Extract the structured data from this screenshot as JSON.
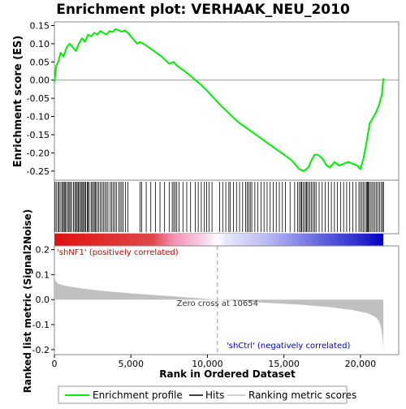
{
  "chart_data": {
    "type": "line",
    "title": "Enrichment plot: VERHAAK_NEU_2010",
    "es_panel": {
      "ylabel": "Enrichment score (ES)",
      "ylim": [
        -0.275,
        0.16
      ],
      "yticks": [
        -0.25,
        -0.2,
        -0.15,
        -0.1,
        -0.05,
        0.0,
        0.05,
        0.1,
        0.15
      ],
      "ytick_labels": [
        "-0.25",
        "-0.20",
        "-0.15",
        "-0.10",
        "-0.05",
        "0.00",
        "0.05",
        "0.10",
        "0.15"
      ],
      "series_name": "Enrichment profile",
      "line_color": "#00ee00",
      "x": [
        0,
        120,
        250,
        400,
        600,
        800,
        1000,
        1200,
        1400,
        1600,
        1800,
        2000,
        2200,
        2400,
        2600,
        2800,
        3000,
        3200,
        3400,
        3600,
        3800,
        4000,
        4200,
        4400,
        4600,
        4800,
        5000,
        5200,
        5400,
        5600,
        5800,
        6000,
        6500,
        7000,
        7500,
        7800,
        8000,
        8500,
        9000,
        9500,
        10000,
        10654,
        11000,
        11500,
        12000,
        12500,
        13000,
        13500,
        14000,
        14500,
        15000,
        15500,
        16000,
        16300,
        16600,
        16800,
        17000,
        17200,
        17500,
        17800,
        18000,
        18300,
        18600,
        18900,
        19200,
        19500,
        19800,
        20000,
        20200,
        20400,
        20600,
        20800,
        21000,
        21200,
        21400,
        21500
      ],
      "y": [
        -0.005,
        0.04,
        0.05,
        0.075,
        0.065,
        0.09,
        0.1,
        0.09,
        0.08,
        0.1,
        0.115,
        0.105,
        0.125,
        0.12,
        0.13,
        0.125,
        0.135,
        0.13,
        0.125,
        0.135,
        0.132,
        0.14,
        0.137,
        0.133,
        0.137,
        0.13,
        0.12,
        0.11,
        0.1,
        0.105,
        0.1,
        0.095,
        0.08,
        0.065,
        0.045,
        0.05,
        0.04,
        0.025,
        0.008,
        -0.01,
        -0.03,
        -0.06,
        -0.075,
        -0.095,
        -0.115,
        -0.13,
        -0.145,
        -0.16,
        -0.175,
        -0.19,
        -0.205,
        -0.22,
        -0.245,
        -0.25,
        -0.24,
        -0.22,
        -0.205,
        -0.205,
        -0.215,
        -0.235,
        -0.24,
        -0.225,
        -0.235,
        -0.23,
        -0.225,
        -0.23,
        -0.235,
        -0.245,
        -0.215,
        -0.17,
        -0.12,
        -0.105,
        -0.09,
        -0.07,
        -0.04,
        0.005
      ]
    },
    "hits": [
      50,
      150,
      260,
      310,
      420,
      520,
      580,
      650,
      720,
      800,
      900,
      960,
      1050,
      1120,
      1250,
      1330,
      1400,
      1480,
      1550,
      1600,
      1700,
      1760,
      1850,
      1900,
      1980,
      2050,
      2150,
      2200,
      2280,
      2400,
      2480,
      2560,
      2650,
      2700,
      2800,
      2900,
      3000,
      3100,
      3200,
      3300,
      3400,
      3500,
      3650,
      3750,
      3850,
      3950,
      4050,
      4200,
      4300,
      4400,
      4500,
      4650,
      4800,
      5600,
      5700,
      6000,
      6300,
      6600,
      6900,
      7200,
      7500,
      7700,
      7800,
      7900,
      8000,
      8150,
      8400,
      8650,
      8900,
      9200,
      9400,
      9600,
      9800,
      9950,
      10100,
      10300,
      10800,
      11000,
      11200,
      11400,
      11500,
      11700,
      11900,
      12100,
      12300,
      12500,
      12600,
      12700,
      12800,
      12900,
      13100,
      13300,
      13500,
      13700,
      13900,
      14100,
      14300,
      14500,
      14700,
      14900,
      15100,
      15400,
      15700,
      15900,
      16000,
      16100,
      16150,
      16250,
      16350,
      16450,
      16500,
      16600,
      16700,
      16800,
      16900,
      17000,
      17100,
      17300,
      17500,
      17700,
      17900,
      18100,
      18300,
      18500,
      18700,
      18900,
      19100,
      19300,
      19500,
      19700,
      19900,
      20000,
      20100,
      20200,
      20300,
      20400,
      20450,
      20500,
      20550,
      20650,
      20750,
      20850,
      20950,
      21050,
      21150,
      21250,
      21350,
      21450,
      21500
    ],
    "metric_panel": {
      "ylabel": "Ranked list metric (Signal2Noise)",
      "ylim": [
        -0.22,
        0.215
      ],
      "yticks": [
        -0.2,
        -0.1,
        0.0,
        0.1,
        0.2
      ],
      "ytick_labels": [
        "-0.2",
        "-0.1",
        "0.0",
        "0.1",
        "0.2"
      ],
      "fill_color": "#c0c0c0",
      "x": [
        0,
        30,
        80,
        150,
        300,
        600,
        1000,
        2000,
        3000,
        5000,
        8000,
        10654,
        13000,
        16000,
        18000,
        19500,
        20500,
        21000,
        21200,
        21350,
        21450,
        21500
      ],
      "y": [
        0.1,
        0.085,
        0.075,
        0.068,
        0.062,
        0.057,
        0.052,
        0.043,
        0.036,
        0.025,
        0.012,
        0.0,
        -0.01,
        -0.02,
        -0.03,
        -0.042,
        -0.055,
        -0.07,
        -0.085,
        -0.11,
        -0.155,
        -0.2
      ],
      "positive_label": "'shNF1' (positively correlated)",
      "negative_label": "'shCtrl' (negatively correlated)",
      "positive_color": "#cc0000",
      "negative_color": "#0000cc",
      "zero_cross_label": "Zero cross at 10654",
      "zero_cross_value": 10654
    },
    "xlabel": "Rank in Ordered Dataset",
    "xlim": [
      0,
      22500
    ],
    "xticks": [
      0,
      5000,
      10000,
      15000,
      20000
    ],
    "xtick_labels": [
      "0",
      "5,000",
      "10,000",
      "15,000",
      "20,000"
    ],
    "total_genes": 21500,
    "legend": {
      "placement": "bottom",
      "items": [
        {
          "label": "Enrichment profile",
          "kind": "line",
          "color": "#00ee00"
        },
        {
          "label": "Hits",
          "kind": "line",
          "color": "#000000"
        },
        {
          "label": "Ranking metric scores",
          "kind": "line",
          "color": "#c0c0c0"
        }
      ]
    }
  }
}
